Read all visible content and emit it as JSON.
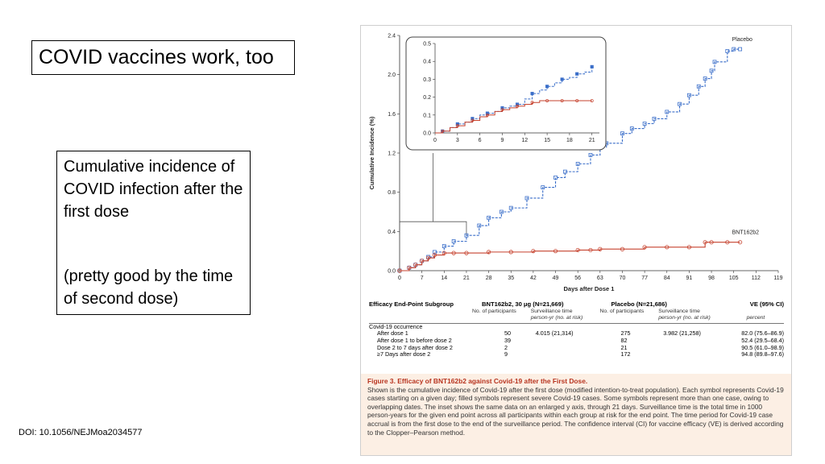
{
  "slide": {
    "title": "COVID vaccines work, too",
    "text_box": {
      "line1": "Cumulative incidence of COVID infection after the first dose",
      "line2": "(pretty good by the time of second dose)"
    },
    "doi": "DOI: 10.1056/NEJMoa2034577"
  },
  "colors": {
    "placebo": "#3a6ec9",
    "vaccine": "#c6422e",
    "caption_bg": "#fcefe4",
    "caption_title": "#b8341f"
  },
  "chart_data": [
    {
      "type": "line",
      "xlabel": "Days after Dose 1",
      "ylabel": "Cumulative Incidence (%)",
      "xlim": [
        0,
        119
      ],
      "ylim": [
        0,
        2.4
      ],
      "x_ticks": [
        "0",
        "7",
        "14",
        "21",
        "28",
        "35",
        "42",
        "49",
        "56",
        "63",
        "70",
        "77",
        "84",
        "91",
        "98",
        "105",
        "112",
        "119"
      ],
      "y_ticks": [
        "0.0",
        "0.4",
        "0.8",
        "1.2",
        "1.6",
        "2.0",
        "2.4"
      ],
      "series": [
        {
          "name": "Placebo",
          "x": [
            0,
            3,
            5,
            7,
            9,
            11,
            14,
            17,
            21,
            25,
            28,
            32,
            35,
            40,
            45,
            49,
            52,
            56,
            60,
            63,
            65,
            70,
            73,
            77,
            80,
            84,
            88,
            91,
            94,
            96,
            98,
            99,
            103,
            105,
            107
          ],
          "y": [
            0,
            0.03,
            0.06,
            0.1,
            0.14,
            0.19,
            0.25,
            0.3,
            0.36,
            0.46,
            0.54,
            0.6,
            0.64,
            0.74,
            0.85,
            0.95,
            1.01,
            1.09,
            1.18,
            1.26,
            1.3,
            1.4,
            1.45,
            1.5,
            1.55,
            1.62,
            1.7,
            1.79,
            1.88,
            1.96,
            2.04,
            2.13,
            2.24,
            2.26,
            2.26
          ]
        },
        {
          "name": "BNT162b2",
          "x": [
            0,
            3,
            5,
            7,
            9,
            11,
            14,
            17,
            21,
            28,
            35,
            42,
            49,
            56,
            60,
            63,
            70,
            77,
            84,
            91,
            96,
            98,
            103,
            107
          ],
          "y": [
            0,
            0.03,
            0.06,
            0.1,
            0.13,
            0.16,
            0.18,
            0.18,
            0.18,
            0.19,
            0.19,
            0.2,
            0.2,
            0.21,
            0.21,
            0.22,
            0.22,
            0.24,
            0.24,
            0.24,
            0.29,
            0.29,
            0.29,
            0.29
          ]
        }
      ]
    },
    {
      "type": "line",
      "title": "",
      "xlim": [
        0,
        22
      ],
      "ylim": [
        0,
        0.5
      ],
      "x_ticks": [
        "0",
        "3",
        "6",
        "9",
        "12",
        "15",
        "18",
        "21"
      ],
      "y_ticks": [
        "0.0",
        "0.1",
        "0.2",
        "0.3",
        "0.4",
        "0.5"
      ],
      "series": [
        {
          "name": "Placebo",
          "x": [
            0,
            1,
            2,
            3,
            4,
            5,
            6,
            7,
            8,
            9,
            10,
            11,
            12,
            13,
            14,
            15,
            16,
            17,
            18,
            19,
            20,
            21
          ],
          "y": [
            0,
            0.01,
            0.03,
            0.05,
            0.06,
            0.08,
            0.1,
            0.11,
            0.12,
            0.14,
            0.15,
            0.16,
            0.19,
            0.22,
            0.24,
            0.26,
            0.28,
            0.3,
            0.31,
            0.33,
            0.34,
            0.37
          ]
        },
        {
          "name": "BNT162b2",
          "x": [
            0,
            1,
            2,
            3,
            4,
            5,
            6,
            7,
            8,
            9,
            10,
            11,
            12,
            13,
            14,
            15,
            16,
            17,
            18,
            19,
            20,
            21
          ],
          "y": [
            0,
            0.01,
            0.03,
            0.04,
            0.06,
            0.07,
            0.09,
            0.1,
            0.12,
            0.13,
            0.14,
            0.15,
            0.16,
            0.17,
            0.18,
            0.18,
            0.18,
            0.18,
            0.18,
            0.18,
            0.18,
            0.18
          ]
        }
      ]
    }
  ],
  "table": {
    "col_headers": [
      "Efficacy End-Point Subgroup",
      "BNT162b2, 30 μg (N=21,669)",
      "Placebo (N=21,686)",
      "VE (95% CI)"
    ],
    "sub_headers": [
      "No. of participants",
      "Surveillance time",
      "No. of participants",
      "Surveillance time"
    ],
    "sub_headers2": [
      "person-yr (no. at risk)",
      "person-yr (no. at risk)",
      "percent"
    ],
    "group_label": "Covid-19 occurrence",
    "rows": [
      {
        "label": "After dose 1",
        "bnt_n": "50",
        "bnt_time": "4.015 (21,314)",
        "pl_n": "275",
        "pl_time": "3.982 (21,258)",
        "ve": "82.0 (75.6–86.9)"
      },
      {
        "label": "After dose 1 to before dose 2",
        "bnt_n": "39",
        "bnt_time": "",
        "pl_n": "82",
        "pl_time": "",
        "ve": "52.4 (29.5–68.4)"
      },
      {
        "label": "Dose 2 to 7 days after dose 2",
        "bnt_n": "2",
        "bnt_time": "",
        "pl_n": "21",
        "pl_time": "",
        "ve": "90.5 (61.0–98.9)"
      },
      {
        "label": "≥7 Days after dose 2",
        "bnt_n": "9",
        "bnt_time": "",
        "pl_n": "172",
        "pl_time": "",
        "ve": "94.8 (89.8–97.6)"
      }
    ]
  },
  "caption": {
    "title": "Figure 3. Efficacy of BNT162b2 against Covid-19 after the First Dose.",
    "body": "Shown is the cumulative incidence of Covid-19 after the first dose (modified intention-to-treat population). Each symbol represents Covid-19 cases starting on a given day; filled symbols represent severe Covid-19 cases. Some symbols represent more than one case, owing to overlapping dates. The inset shows the same data on an enlarged y axis, through 21 days. Surveillance time is the total time in 1000 person-years for the given end point across all participants within each group at risk for the end point. The time period for Covid-19 case accrual is from the first dose to the end of the surveillance period. The confidence interval (CI) for vaccine efficacy (VE) is derived according to the Clopper–Pearson method."
  }
}
